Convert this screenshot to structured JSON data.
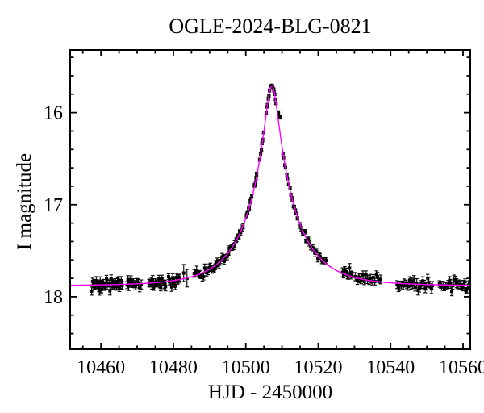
{
  "chart_data": {
    "type": "scatter",
    "title": "OGLE-2024-BLG-0821",
    "xlabel": "HJD - 2450000",
    "ylabel": "I magnitude",
    "xlim": [
      10451.5,
      10562.0
    ],
    "ylim": [
      18.57,
      15.32
    ],
    "y_axis_inverted": true,
    "grid": false,
    "x_major_ticks": [
      10460,
      10480,
      10500,
      10520,
      10540,
      10560
    ],
    "x_minor_step": 5,
    "y_major_ticks": [
      16,
      17,
      18
    ],
    "y_minor_step": 0.2,
    "y_minor_start": 15.4,
    "y_minor_end": 18.56,
    "curve_color": "#ff00ff",
    "point_color": "#000000",
    "frame_color": "#000000",
    "background_color": "#ffffff",
    "model_curve": {
      "kind": "paczynski_microlensing",
      "t0": 10507.2,
      "tE": 13.0,
      "u0": 0.136,
      "baseline_mag": 17.88,
      "peak_mag": 15.71
    },
    "noise_seed": 7,
    "observation_windows": [
      {
        "t_start": 10457.4,
        "t_end": 10462.0,
        "n": 22,
        "err": 0.04,
        "bias": 0
      },
      {
        "t_start": 10462.2,
        "t_end": 10466.0,
        "n": 16,
        "err": 0.04,
        "bias": 0
      },
      {
        "t_start": 10467.0,
        "t_end": 10471.2,
        "n": 14,
        "err": 0.04,
        "bias": 0
      },
      {
        "t_start": 10473.2,
        "t_end": 10478.0,
        "n": 20,
        "err": 0.04,
        "bias": 0
      },
      {
        "t_start": 10478.5,
        "t_end": 10481.8,
        "n": 12,
        "err": 0.04,
        "bias": 0
      },
      {
        "t_start": 10482.6,
        "t_end": 10484.2,
        "n": 2,
        "err": 0.085,
        "bias": 0
      },
      {
        "t_start": 10485.6,
        "t_end": 10494.5,
        "n": 28,
        "err": 0.036,
        "bias": 0
      },
      {
        "t_start": 10494.8,
        "t_end": 10499.4,
        "n": 16,
        "err": 0.028,
        "bias": 0
      },
      {
        "t_start": 10500.0,
        "t_end": 10501.7,
        "n": 8,
        "err": 0.022,
        "bias": 0
      },
      {
        "t_start": 10502.3,
        "t_end": 10503.1,
        "n": 5,
        "err": 0.02,
        "bias": 0
      },
      {
        "t_start": 10503.8,
        "t_end": 10505.0,
        "n": 6,
        "err": 0.016,
        "bias": 0
      },
      {
        "t_start": 10505.6,
        "t_end": 10506.6,
        "n": 6,
        "err": 0.014,
        "bias": 0
      },
      {
        "t_start": 10506.8,
        "t_end": 10508.4,
        "n": 10,
        "err": 0.011,
        "bias": 0
      },
      {
        "t_start": 10510.1,
        "t_end": 10511.9,
        "n": 7,
        "err": 0.016,
        "bias": 0
      },
      {
        "t_start": 10512.1,
        "t_end": 10514.4,
        "n": 8,
        "err": 0.02,
        "bias": 0
      },
      {
        "t_start": 10514.8,
        "t_end": 10518.1,
        "n": 10,
        "err": 0.026,
        "bias": 0
      },
      {
        "t_start": 10518.4,
        "t_end": 10522.5,
        "n": 12,
        "err": 0.032,
        "bias": 0
      },
      {
        "t_start": 10526.6,
        "t_end": 10529.5,
        "n": 9,
        "err": 0.04,
        "bias": -0.02
      },
      {
        "t_start": 10530.1,
        "t_end": 10537.5,
        "n": 18,
        "err": 0.04,
        "bias": -0.01
      },
      {
        "t_start": 10541.6,
        "t_end": 10551.8,
        "n": 30,
        "err": 0.042,
        "bias": 0
      },
      {
        "t_start": 10553.4,
        "t_end": 10562.0,
        "n": 26,
        "err": 0.042,
        "bias": 0
      }
    ],
    "outlier_points": [
      {
        "t": 10509.0,
        "mag": 16.0,
        "err": 0.02
      },
      {
        "t": 10509.4,
        "mag": 16.05,
        "err": 0.02
      }
    ]
  }
}
